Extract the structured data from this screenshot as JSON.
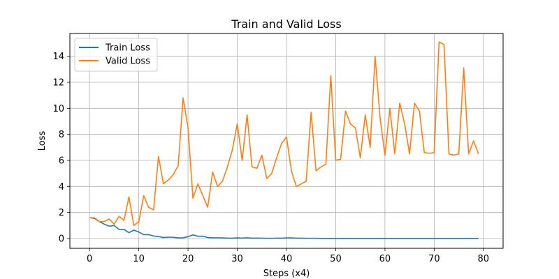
{
  "chart_data": {
    "type": "line",
    "title": "Train and Valid Loss",
    "xlabel": "Steps (x4)",
    "ylabel": "Loss",
    "xlim": [
      -4,
      84
    ],
    "ylim": [
      -0.75,
      15.75
    ],
    "xticks": [
      0,
      10,
      20,
      30,
      40,
      50,
      60,
      70,
      80
    ],
    "yticks": [
      0,
      2,
      4,
      6,
      8,
      10,
      12,
      14
    ],
    "grid": true,
    "legend": "top-left",
    "series": [
      {
        "name": "Train Loss",
        "color": "#1f77b4",
        "x": [
          0,
          1,
          2,
          3,
          4,
          5,
          6,
          7,
          8,
          9,
          10,
          11,
          12,
          13,
          14,
          15,
          16,
          17,
          18,
          19,
          20,
          21,
          22,
          23,
          24,
          25,
          26,
          27,
          28,
          29,
          30,
          31,
          32,
          33,
          34,
          35,
          36,
          37,
          38,
          39,
          40,
          41,
          42,
          43,
          44,
          45,
          46,
          47,
          48,
          49,
          50,
          51,
          52,
          53,
          54,
          55,
          56,
          57,
          58,
          59,
          60,
          61,
          62,
          63,
          64,
          65,
          66,
          67,
          68,
          69,
          70,
          71,
          72,
          73,
          74,
          75,
          76,
          77,
          78,
          79
        ],
        "values": [
          1.6,
          1.55,
          1.3,
          1.1,
          0.95,
          1.0,
          0.7,
          0.7,
          0.45,
          0.65,
          0.5,
          0.3,
          0.3,
          0.2,
          0.15,
          0.08,
          0.1,
          0.1,
          0.05,
          0.05,
          0.15,
          0.28,
          0.18,
          0.18,
          0.08,
          0.06,
          0.06,
          0.05,
          0.03,
          0.03,
          0.05,
          0.04,
          0.06,
          0.03,
          0.04,
          0.03,
          0.02,
          0.02,
          0.03,
          0.03,
          0.05,
          0.05,
          0.03,
          0.03,
          0.02,
          0.02,
          0.02,
          0.01,
          0.01,
          0.01,
          0.01,
          0.01,
          0.01,
          0.01,
          0.01,
          0.01,
          0.01,
          0.01,
          0.01,
          0.01,
          0.01,
          0.01,
          0.01,
          0.01,
          0.01,
          0.01,
          0.01,
          0.01,
          0.01,
          0.01,
          0.01,
          0.01,
          0.01,
          0.01,
          0.01,
          0.01,
          0.01,
          0.01,
          0.01,
          0.01
        ]
      },
      {
        "name": "Valid Loss",
        "color": "#ff7f0e",
        "x": [
          0,
          1,
          2,
          3,
          4,
          5,
          6,
          7,
          8,
          9,
          10,
          11,
          12,
          13,
          14,
          15,
          16,
          17,
          18,
          19,
          20,
          21,
          22,
          23,
          24,
          25,
          26,
          27,
          28,
          29,
          30,
          31,
          32,
          33,
          34,
          35,
          36,
          37,
          38,
          39,
          40,
          41,
          42,
          43,
          44,
          45,
          46,
          47,
          48,
          49,
          50,
          51,
          52,
          53,
          54,
          55,
          56,
          57,
          58,
          59,
          60,
          61,
          62,
          63,
          64,
          65,
          66,
          67,
          68,
          69,
          70,
          71,
          72,
          73,
          74,
          75,
          76,
          77,
          78,
          79
        ],
        "values": [
          1.6,
          1.6,
          1.3,
          1.3,
          1.5,
          1.1,
          1.7,
          1.4,
          3.2,
          1.0,
          1.3,
          3.3,
          2.4,
          2.2,
          6.3,
          4.2,
          4.5,
          4.9,
          5.6,
          10.8,
          8.5,
          3.1,
          4.2,
          3.3,
          2.4,
          5.1,
          4.0,
          4.4,
          5.5,
          6.8,
          8.8,
          6.0,
          9.5,
          5.5,
          5.4,
          6.4,
          4.6,
          5.0,
          6.2,
          7.3,
          7.8,
          5.2,
          4.0,
          4.2,
          4.4,
          9.7,
          5.2,
          5.5,
          5.7,
          12.5,
          6.0,
          6.1,
          9.8,
          8.8,
          8.5,
          6.2,
          9.5,
          7.0,
          14.0,
          9.3,
          6.4,
          10.0,
          6.5,
          10.4,
          8.8,
          6.5,
          10.4,
          9.8,
          6.6,
          6.55,
          6.6,
          15.1,
          14.9,
          6.5,
          6.4,
          6.5,
          13.1,
          6.5,
          7.5,
          6.5
        ]
      }
    ]
  }
}
